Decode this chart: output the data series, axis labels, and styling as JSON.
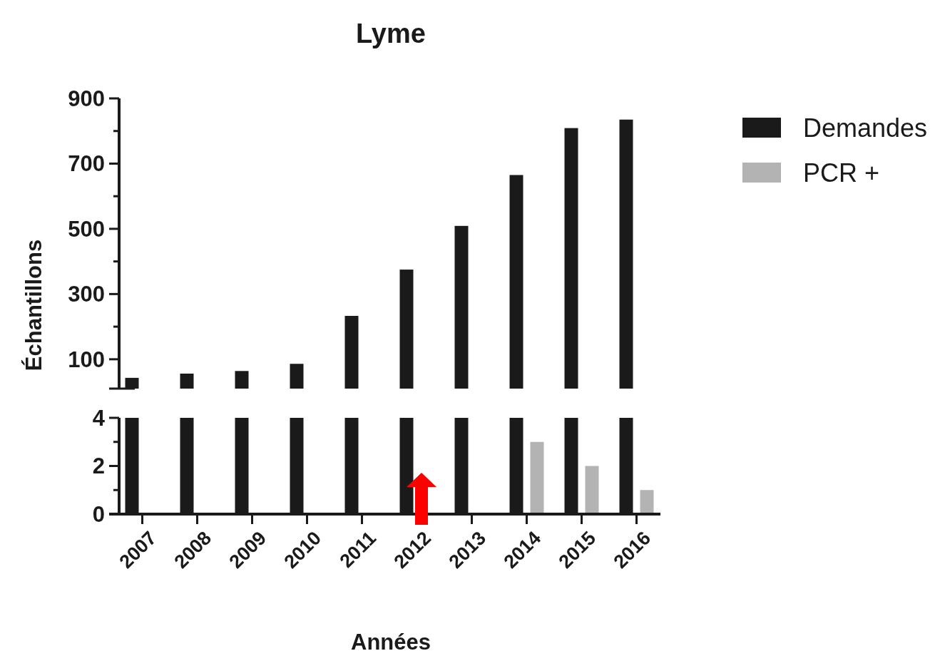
{
  "chart_data": [
    {
      "type": "bar",
      "title": "Lyme",
      "ylabel": "Échantillons",
      "categories": [
        "2007",
        "2008",
        "2009",
        "2010",
        "2011",
        "2012",
        "2013",
        "2014",
        "2015",
        "2016"
      ],
      "series": [
        {
          "name": "Demandes",
          "color": "#1a1a1a",
          "values": [
            43,
            56,
            64,
            86,
            233,
            375,
            509,
            665,
            809,
            835
          ]
        },
        {
          "name": "PCR +",
          "color": "#b3b3b4",
          "values": [
            null,
            null,
            null,
            null,
            null,
            null,
            null,
            null,
            null,
            null
          ]
        }
      ],
      "ylim": [
        10,
        900
      ],
      "yticks": [
        100,
        {
          "value": 200,
          "label": null
        },
        300,
        {
          "value": 400,
          "label": null
        },
        500,
        {
          "value": 600,
          "label": null
        },
        700,
        {
          "value": 800,
          "label": null
        },
        900
      ],
      "tick_labels": "y",
      "legend": "right"
    },
    {
      "type": "bar",
      "xlabel": "Années",
      "categories": [
        "2007",
        "2008",
        "2009",
        "2010",
        "2011",
        "2012",
        "2013",
        "2014",
        "2015",
        "2016"
      ],
      "series": [
        {
          "color": "#1a1a1a",
          "values": [
            4,
            4,
            4,
            4,
            4,
            4,
            4,
            4,
            4,
            4
          ]
        },
        {
          "color": "#b3b3b4",
          "values": [
            null,
            null,
            null,
            null,
            null,
            null,
            null,
            3,
            2,
            1
          ]
        }
      ],
      "ylim": [
        0,
        4
      ],
      "yticks": [
        0,
        {
          "value": 1,
          "label": null
        },
        2,
        {
          "value": 3,
          "label": null
        },
        4
      ]
    }
  ]
}
